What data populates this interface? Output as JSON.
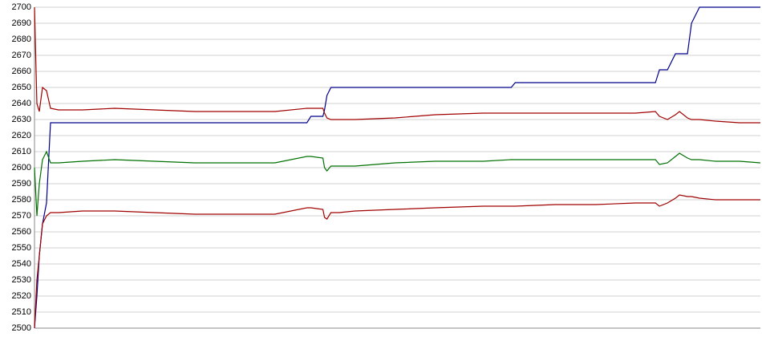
{
  "chart_data": {
    "type": "line",
    "x": [
      0,
      3,
      6,
      10,
      15,
      20,
      30,
      60,
      100,
      150,
      200,
      250,
      300,
      340,
      345,
      360,
      362,
      365,
      370,
      380,
      400,
      450,
      500,
      560,
      595,
      600,
      650,
      700,
      750,
      775,
      780,
      790,
      800,
      805,
      815,
      820,
      830,
      850,
      880,
      906
    ],
    "xlim": [
      0,
      906
    ],
    "series": [
      {
        "color": "#00008b",
        "values": [
          2500,
          2520,
          2545,
          2565,
          2578,
          2628,
          2628,
          2628,
          2628,
          2628,
          2628,
          2628,
          2628,
          2628,
          2632,
          2632,
          2636,
          2645,
          2650,
          2650,
          2650,
          2650,
          2650,
          2650,
          2650,
          2653,
          2653,
          2653,
          2653,
          2653,
          2661,
          2661,
          2671,
          2671,
          2671,
          2690,
          2700,
          2700,
          2700,
          2700
        ]
      },
      {
        "color": "#a00000",
        "values": [
          2700,
          2640,
          2635,
          2650,
          2648,
          2637,
          2636,
          2636,
          2637,
          2636,
          2635,
          2635,
          2635,
          2637,
          2637,
          2637,
          2634,
          2631,
          2630,
          2630,
          2630,
          2631,
          2633,
          2634,
          2634,
          2634,
          2634,
          2634,
          2634,
          2635,
          2632,
          2630,
          2633,
          2635,
          2631,
          2630,
          2630,
          2629,
          2628,
          2628
        ]
      },
      {
        "color": "#007000",
        "values": [
          2600,
          2570,
          2590,
          2605,
          2610,
          2603,
          2603,
          2604,
          2605,
          2604,
          2603,
          2603,
          2603,
          2607,
          2607,
          2606,
          2600,
          2598,
          2601,
          2601,
          2601,
          2603,
          2604,
          2604,
          2605,
          2605,
          2605,
          2605,
          2605,
          2605,
          2602,
          2603,
          2607,
          2609,
          2606,
          2605,
          2605,
          2604,
          2604,
          2603
        ]
      },
      {
        "color": "#a00000",
        "values": [
          2500,
          2530,
          2545,
          2565,
          2570,
          2572,
          2572,
          2573,
          2573,
          2572,
          2571,
          2571,
          2571,
          2575,
          2575,
          2574,
          2569,
          2568,
          2572,
          2572,
          2573,
          2574,
          2575,
          2576,
          2576,
          2576,
          2577,
          2577,
          2578,
          2578,
          2576,
          2578,
          2581,
          2583,
          2582,
          2582,
          2581,
          2580,
          2580,
          2580
        ]
      }
    ],
    "ylim": [
      2500,
      2700
    ],
    "yticks": [
      2500,
      2510,
      2520,
      2530,
      2540,
      2550,
      2560,
      2570,
      2580,
      2590,
      2600,
      2610,
      2620,
      2630,
      2640,
      2650,
      2660,
      2670,
      2680,
      2690,
      2700
    ],
    "grid": true
  }
}
